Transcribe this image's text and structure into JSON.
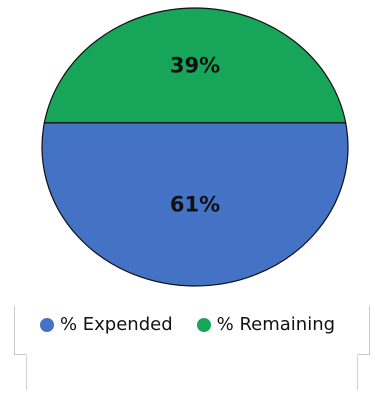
{
  "chart_data": {
    "type": "pie",
    "title": "",
    "slices": [
      {
        "label": "% Remaining",
        "value": 39,
        "display": "39%",
        "color": "#17a55a"
      },
      {
        "label": "% Expended",
        "value": 61,
        "display": "61%",
        "color": "#4472c4"
      }
    ],
    "legend": {
      "position": "bottom",
      "items": [
        {
          "label": "% Expended",
          "color": "#4472c4"
        },
        {
          "label": "% Remaining",
          "color": "#17a55a"
        }
      ]
    },
    "edge_color": "#111111"
  }
}
